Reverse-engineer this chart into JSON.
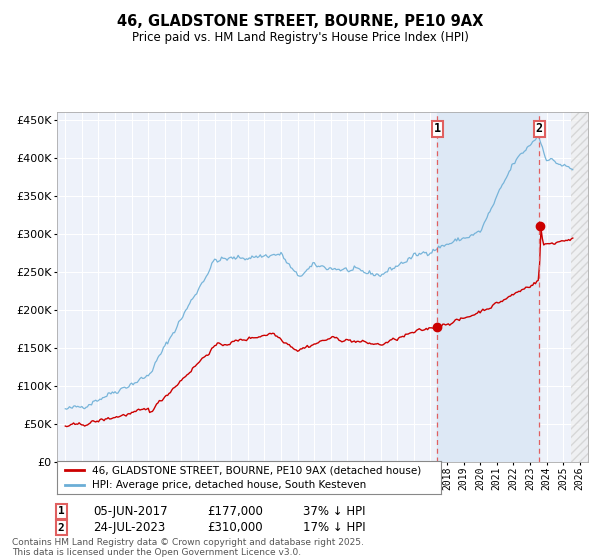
{
  "title": "46, GLADSTONE STREET, BOURNE, PE10 9AX",
  "subtitle": "Price paid vs. HM Land Registry's House Price Index (HPI)",
  "hpi_label": "HPI: Average price, detached house, South Kesteven",
  "price_label": "46, GLADSTONE STREET, BOURNE, PE10 9AX (detached house)",
  "legend_entry1": "05-JUN-2017",
  "legend_entry1_price": "£177,000",
  "legend_entry1_hpi": "37% ↓ HPI",
  "legend_entry2": "24-JUL-2023",
  "legend_entry2_price": "£310,000",
  "legend_entry2_hpi": "17% ↓ HPI",
  "footnote": "Contains HM Land Registry data © Crown copyright and database right 2025.\nThis data is licensed under the Open Government Licence v3.0.",
  "sale1_year": 2017.43,
  "sale2_year": 2023.56,
  "sale1_price": 177000,
  "sale2_price": 310000,
  "hpi_color": "#6baed6",
  "price_color": "#cc0000",
  "vline_color": "#e06060",
  "background_color": "#ffffff",
  "plot_bg_color": "#eef2fa",
  "grid_color": "#ffffff",
  "shade_color": "#dde8f5",
  "ylim": [
    0,
    460000
  ],
  "ytick_step": 50000,
  "xlim_start": 1994.5,
  "xlim_end": 2026.5
}
